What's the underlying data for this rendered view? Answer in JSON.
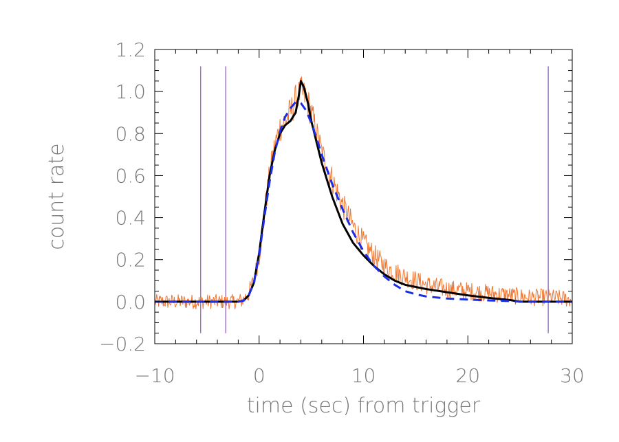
{
  "chart_data": {
    "type": "line",
    "title": "",
    "xlabel": "time (sec) from trigger",
    "ylabel": "count rate",
    "xlim": [
      -10,
      30
    ],
    "ylim": [
      -0.2,
      1.2
    ],
    "x_ticks": [
      -10,
      0,
      10,
      20,
      30
    ],
    "x_tick_labels": [
      "−10",
      "0",
      "10",
      "20",
      "30"
    ],
    "y_ticks": [
      -0.2,
      0.0,
      0.2,
      0.4,
      0.6,
      0.8,
      1.0,
      1.2
    ],
    "y_tick_labels": [
      "−0.2",
      "0.0",
      "0.2",
      "0.4",
      "0.6",
      "0.8",
      "1.0",
      "1.2"
    ],
    "grid": false,
    "legend": "none",
    "vertical_lines": {
      "x": [
        -5.6,
        -3.2,
        27.7
      ],
      "y_range": [
        -0.15,
        1.12
      ],
      "color": "#8a55c0"
    },
    "series": [
      {
        "style": "noisy-data",
        "color": "#ee7733",
        "x": [
          -10,
          -8,
          -6,
          -4,
          -2,
          -1.5,
          -1,
          -0.5,
          0,
          0.5,
          1,
          1.5,
          2,
          2.5,
          3,
          3.5,
          4,
          4.5,
          5,
          5.5,
          6,
          6.5,
          7,
          8,
          9,
          10,
          11,
          12,
          13,
          14,
          15,
          16,
          18,
          20,
          22,
          24,
          26,
          28,
          30
        ],
        "y": [
          0.0,
          0.0,
          0.0,
          0.0,
          0.0,
          0.01,
          0.04,
          0.1,
          0.22,
          0.42,
          0.6,
          0.74,
          0.83,
          0.86,
          0.9,
          0.96,
          1.0,
          0.97,
          0.9,
          0.8,
          0.71,
          0.64,
          0.58,
          0.46,
          0.36,
          0.28,
          0.22,
          0.17,
          0.14,
          0.12,
          0.1,
          0.08,
          0.06,
          0.05,
          0.04,
          0.03,
          0.02,
          0.02,
          0.01
        ],
        "noise_amplitude": 0.045,
        "samples": 640
      },
      {
        "style": "solid",
        "color": "#000000",
        "x": [
          -10,
          -2,
          -1.5,
          -1,
          -0.5,
          0,
          0.5,
          1,
          1.5,
          2,
          2.5,
          3,
          3.5,
          3.8,
          4,
          4.3,
          4.7,
          5,
          5.5,
          6,
          7,
          8,
          9,
          10,
          11,
          12,
          13,
          14,
          15,
          16,
          18,
          20,
          22,
          24,
          25,
          30
        ],
        "y": [
          0.0,
          0.0,
          0.005,
          0.03,
          0.09,
          0.23,
          0.42,
          0.6,
          0.72,
          0.8,
          0.84,
          0.86,
          0.9,
          0.98,
          1.05,
          1.02,
          0.94,
          0.86,
          0.76,
          0.66,
          0.5,
          0.37,
          0.28,
          0.22,
          0.17,
          0.13,
          0.1,
          0.08,
          0.07,
          0.06,
          0.045,
          0.03,
          0.018,
          0.008,
          0.0,
          0.0
        ]
      },
      {
        "style": "dashed",
        "color": "#1a2ee8",
        "x": [
          -10,
          -2,
          -1.5,
          -1,
          -0.5,
          0,
          0.5,
          1,
          1.5,
          2,
          2.5,
          3,
          3.5,
          4,
          4.5,
          5,
          5.5,
          6,
          7,
          8,
          9,
          10,
          11,
          12,
          13,
          14,
          15,
          16,
          18,
          20,
          22,
          24,
          25,
          30
        ],
        "y": [
          0.0,
          0.0,
          0.005,
          0.03,
          0.09,
          0.22,
          0.4,
          0.57,
          0.71,
          0.81,
          0.88,
          0.92,
          0.95,
          0.945,
          0.91,
          0.85,
          0.78,
          0.7,
          0.56,
          0.44,
          0.33,
          0.24,
          0.17,
          0.12,
          0.08,
          0.05,
          0.035,
          0.025,
          0.015,
          0.01,
          0.006,
          0.003,
          0.0,
          0.0
        ]
      }
    ]
  }
}
